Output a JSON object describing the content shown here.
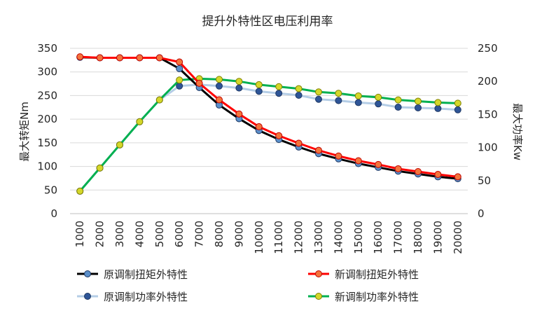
{
  "chart_data": {
    "type": "line",
    "title": "提升外特性区电压利用率",
    "x": [
      1000,
      2000,
      3000,
      4000,
      5000,
      6000,
      7000,
      8000,
      9000,
      10000,
      11000,
      12000,
      13000,
      14000,
      15000,
      16000,
      17000,
      18000,
      19000,
      20000
    ],
    "x_tick_labels": [
      "1000",
      "2000",
      "3000",
      "4000",
      "5000",
      "6000",
      "7000",
      "8000",
      "9000",
      "10000",
      "11000",
      "12000",
      "13000",
      "14000",
      "15000",
      "16000",
      "17000",
      "18000",
      "19000",
      "20000"
    ],
    "ylabel_left": "最大转矩Nm",
    "ylabel_right": "最大功率Kw",
    "ylim_left": [
      0,
      350
    ],
    "ylim_right": [
      0,
      250
    ],
    "yticks_left": [
      "0",
      "50",
      "100",
      "150",
      "200",
      "250",
      "300",
      "350"
    ],
    "yticks_right": [
      "0",
      "50",
      "100",
      "150",
      "200",
      "250"
    ],
    "grid": true,
    "legend_position": "bottom",
    "series": [
      {
        "name": "原调制扭矩外特性",
        "axis": "left",
        "line_color": "#000000",
        "marker_fill": "#5b8fc9",
        "marker_stroke": "#1f3864",
        "values": [
          331,
          330,
          330,
          330,
          330,
          307,
          267,
          230,
          201,
          176,
          157,
          141,
          127,
          116,
          106,
          98,
          90,
          84,
          78,
          74
        ]
      },
      {
        "name": "新调制扭矩外特性",
        "axis": "left",
        "line_color": "#ff0000",
        "marker_fill": "#f4743b",
        "marker_stroke": "#c00000",
        "values": [
          332,
          330,
          330,
          330,
          330,
          321,
          276,
          241,
          211,
          184,
          165,
          149,
          134,
          122,
          112,
          104,
          95,
          89,
          83,
          78
        ]
      },
      {
        "name": "原调制功率外特性",
        "axis": "right",
        "line_color": "#b4cde6",
        "marker_fill": "#2e5597",
        "marker_stroke": "#1f3864",
        "values": [
          34,
          69,
          104,
          139,
          172,
          193,
          195,
          193,
          190,
          185,
          182,
          179,
          173,
          171,
          168,
          166,
          161,
          160,
          159,
          157
        ]
      },
      {
        "name": "新调制功率外特性",
        "axis": "right",
        "line_color": "#00b050",
        "marker_fill": "#d4d72a",
        "marker_stroke": "#7f8000",
        "values": [
          34,
          69,
          104,
          139,
          172,
          202,
          204,
          203,
          200,
          195,
          192,
          189,
          184,
          182,
          178,
          176,
          172,
          170,
          168,
          167
        ]
      }
    ]
  }
}
